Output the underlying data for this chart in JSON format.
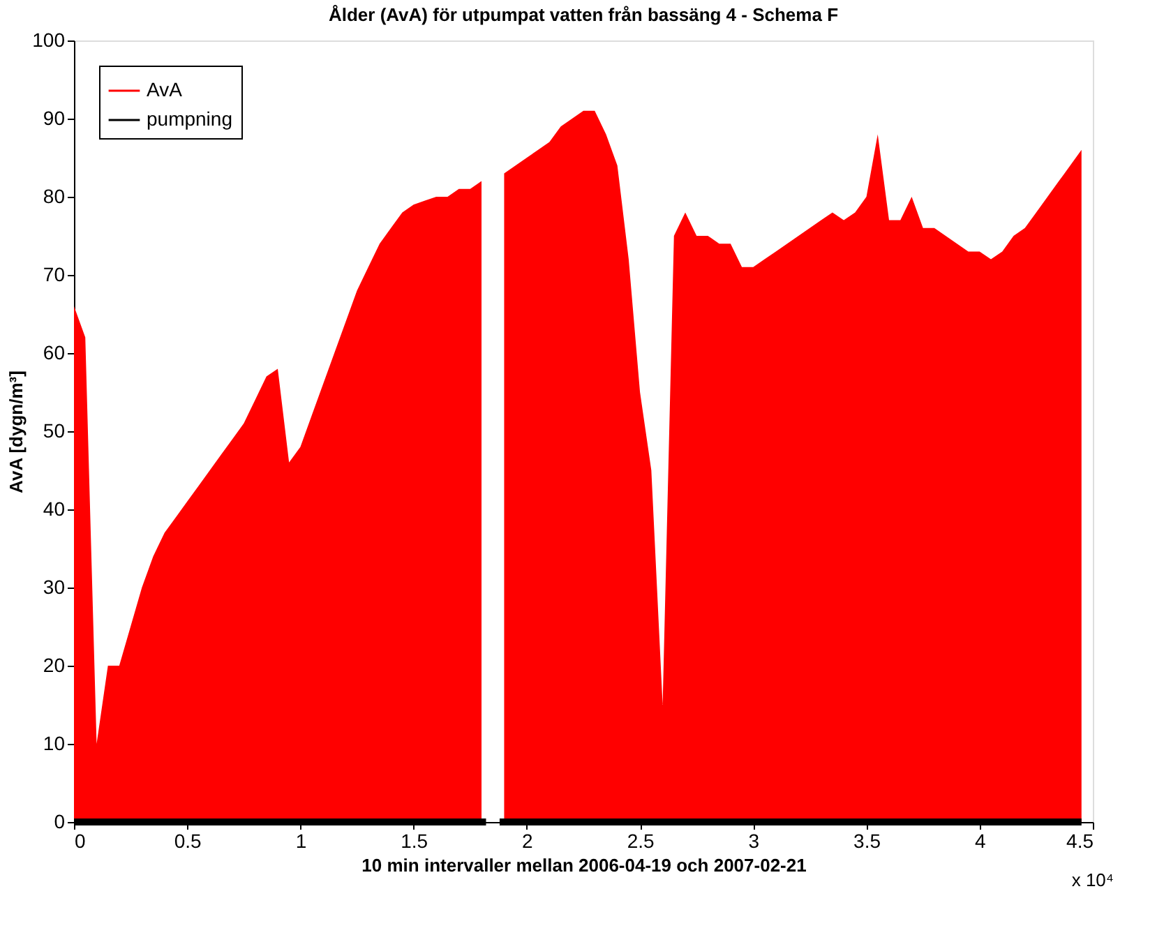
{
  "chart_data": {
    "type": "area",
    "title": "Ålder (AvA) för utpumpat vatten från bassäng 4 - Schema F",
    "xlabel": "10 min intervaller mellan 2006-04-19 och 2007-02-21",
    "ylabel": "AvA [dygn/m³]",
    "annotations": [
      "x 10⁴"
    ],
    "xlim": [
      0,
      4.5
    ],
    "xticks": [
      0,
      0.5,
      1,
      1.5,
      2,
      2.5,
      3,
      3.5,
      4,
      4.5
    ],
    "ylim": [
      0,
      100
    ],
    "yticks": [
      0,
      10,
      20,
      30,
      40,
      50,
      60,
      70,
      80,
      90,
      100
    ],
    "grid": false,
    "legend": "top left",
    "series": [
      {
        "name": "AvA",
        "color": "#ff0000",
        "x": [
          0,
          0.05,
          0.1,
          0.15,
          0.2,
          0.25,
          0.3,
          0.35,
          0.4,
          0.45,
          0.5,
          0.55,
          0.6,
          0.65,
          0.7,
          0.75,
          0.8,
          0.85,
          0.9,
          0.95,
          1.0,
          1.05,
          1.1,
          1.15,
          1.2,
          1.25,
          1.3,
          1.35,
          1.4,
          1.45,
          1.5,
          1.55,
          1.6,
          1.65,
          1.7,
          1.75,
          1.8,
          1.85,
          1.9,
          1.95,
          2.0,
          2.05,
          2.1,
          2.15,
          2.2,
          2.25,
          2.3,
          2.35,
          2.4,
          2.45,
          2.5,
          2.55,
          2.6,
          2.65,
          2.7,
          2.75,
          2.8,
          2.85,
          2.9,
          2.95,
          3.0,
          3.05,
          3.1,
          3.15,
          3.2,
          3.25,
          3.3,
          3.35,
          3.4,
          3.45,
          3.5,
          3.55,
          3.6,
          3.65,
          3.7,
          3.75,
          3.8,
          3.85,
          3.9,
          3.95,
          4.0,
          4.05,
          4.1,
          4.15,
          4.2,
          4.25,
          4.3,
          4.35,
          4.4,
          4.45
        ],
        "values": [
          66,
          62,
          10,
          20,
          20,
          25,
          30,
          34,
          37,
          39,
          41,
          43,
          45,
          47,
          49,
          51,
          54,
          57,
          58,
          46,
          48,
          52,
          56,
          60,
          64,
          68,
          71,
          74,
          76,
          78,
          79,
          79.5,
          80,
          80,
          81,
          81,
          82,
          null,
          83,
          84,
          85,
          86,
          87,
          89,
          90,
          91,
          91,
          88,
          84,
          72,
          55,
          45,
          15,
          75,
          78,
          75,
          75,
          74,
          74,
          71,
          71,
          72,
          73,
          74,
          75,
          76,
          77,
          78,
          77,
          78,
          80,
          88,
          77,
          77,
          80,
          76,
          76,
          75,
          74,
          73,
          73,
          72,
          73,
          75,
          76,
          78,
          80,
          82,
          84,
          86
        ]
      },
      {
        "name": "pumpning",
        "type": "line",
        "color": "#000000",
        "x": [
          0,
          1.82,
          1.85,
          1.88,
          4.45
        ],
        "values": [
          0,
          0,
          null,
          0,
          0
        ]
      }
    ]
  }
}
